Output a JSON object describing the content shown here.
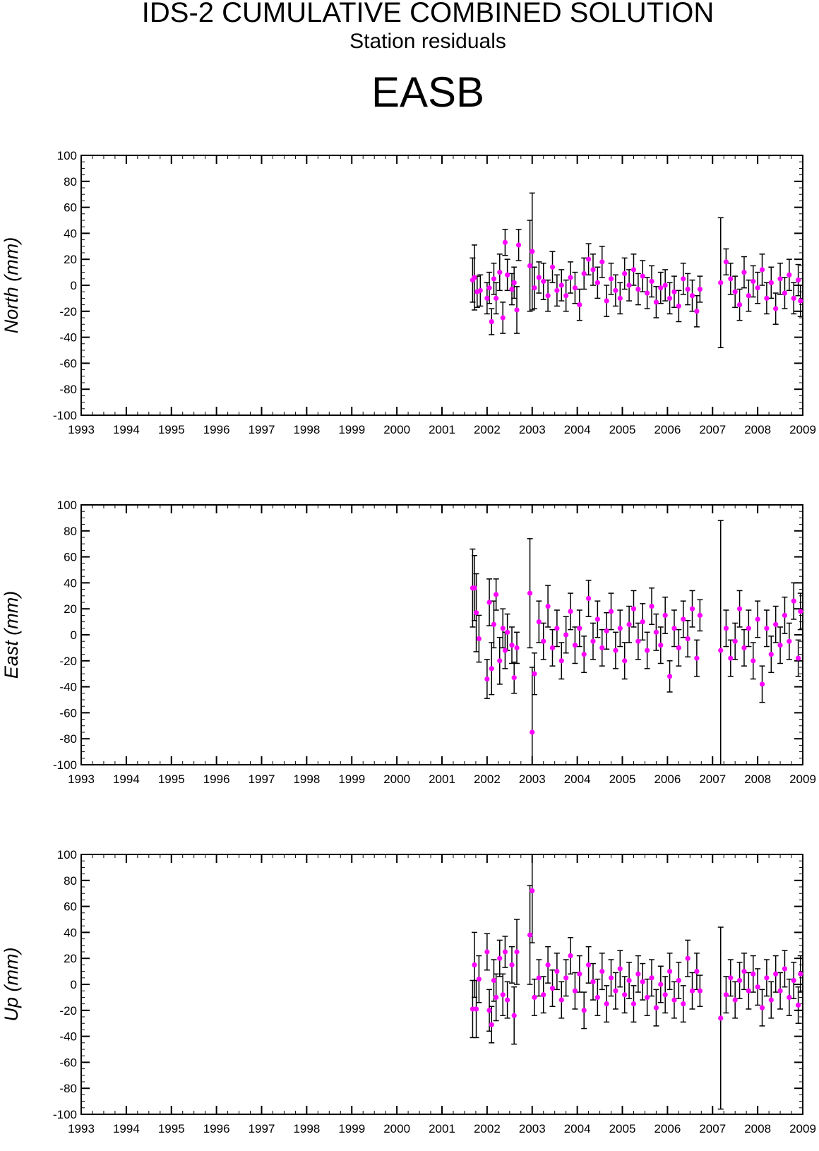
{
  "header": {
    "title": "IDS-2 CUMULATIVE COMBINED SOLUTION",
    "subtitle": "Station residuals",
    "station": "EASB"
  },
  "colors": {
    "marker": "#ff00ff",
    "errorbar": "#000000",
    "axes": "#000000"
  },
  "chart_data": [
    {
      "type": "scatter",
      "ylabel": "North (mm)",
      "xlim": [
        1993,
        2009
      ],
      "ylim": [
        -100,
        100
      ],
      "x_ticks": [
        "1993",
        "1994",
        "1995",
        "1996",
        "1997",
        "1998",
        "1999",
        "2000",
        "2001",
        "2002",
        "2003",
        "2004",
        "2005",
        "2006",
        "2007",
        "2008",
        "2009"
      ],
      "y_ticks": [
        "-100",
        "-80",
        "-60",
        "-40",
        "-20",
        "0",
        "20",
        "40",
        "60",
        "80",
        "100"
      ],
      "series": [
        {
          "x": [
            2001.68,
            2001.72,
            2001.78,
            2001.85,
            2002.0,
            2002.05,
            2002.1,
            2002.15,
            2002.2,
            2002.28,
            2002.35,
            2002.4,
            2002.45,
            2002.55,
            2002.6,
            2002.66,
            2002.7,
            2002.95,
            2003.0,
            2003.05,
            2003.15,
            2003.25,
            2003.35,
            2003.45,
            2003.55,
            2003.65,
            2003.75,
            2003.85,
            2003.95,
            2004.05,
            2004.15,
            2004.25,
            2004.35,
            2004.45,
            2004.55,
            2004.65,
            2004.75,
            2004.85,
            2004.95,
            2005.05,
            2005.15,
            2005.25,
            2005.35,
            2005.45,
            2005.55,
            2005.65,
            2005.75,
            2005.85,
            2005.95,
            2006.05,
            2006.15,
            2006.25,
            2006.35,
            2006.45,
            2006.55,
            2006.65,
            2006.72,
            2007.18,
            2007.3,
            2007.4,
            2007.5,
            2007.6,
            2007.7,
            2007.8,
            2007.9,
            2008.0,
            2008.1,
            2008.2,
            2008.3,
            2008.4,
            2008.5,
            2008.6,
            2008.7,
            2008.8,
            2008.9,
            2008.95
          ],
          "y": [
            4,
            6,
            -5,
            -4,
            -10,
            -2,
            -28,
            5,
            -10,
            10,
            -25,
            33,
            8,
            -3,
            2,
            -19,
            31,
            15,
            26,
            -2,
            6,
            3,
            -8,
            14,
            -4,
            0,
            -8,
            6,
            -2,
            -15,
            9,
            20,
            12,
            2,
            18,
            -12,
            5,
            -4,
            -10,
            9,
            0,
            12,
            -3,
            7,
            -6,
            3,
            -13,
            -2,
            0,
            -10,
            -5,
            -16,
            5,
            -3,
            -8,
            -20,
            -3,
            2,
            18,
            5,
            -5,
            -15,
            10,
            -8,
            3,
            -2,
            12,
            -10,
            2,
            -18,
            5,
            -6,
            8,
            -10,
            4,
            -12
          ],
          "err": [
            17,
            25,
            12,
            12,
            12,
            12,
            10,
            12,
            12,
            14,
            12,
            10,
            12,
            12,
            12,
            18,
            12,
            35,
            45,
            16,
            12,
            14,
            12,
            12,
            12,
            12,
            12,
            12,
            12,
            12,
            12,
            12,
            12,
            12,
            12,
            12,
            12,
            12,
            12,
            12,
            12,
            12,
            12,
            12,
            12,
            12,
            12,
            12,
            12,
            12,
            12,
            12,
            12,
            12,
            12,
            12,
            10,
            50,
            10,
            12,
            12,
            12,
            12,
            12,
            12,
            12,
            12,
            12,
            12,
            12,
            12,
            12,
            12,
            12,
            12,
            12
          ]
        }
      ]
    },
    {
      "type": "scatter",
      "ylabel": "East (mm)",
      "xlim": [
        1993,
        2009
      ],
      "ylim": [
        -100,
        100
      ],
      "x_ticks": [
        "1993",
        "1994",
        "1995",
        "1996",
        "1997",
        "1998",
        "1999",
        "2000",
        "2001",
        "2002",
        "2003",
        "2004",
        "2005",
        "2006",
        "2007",
        "2008",
        "2009"
      ],
      "y_ticks": [
        "-100",
        "-80",
        "-60",
        "-40",
        "-20",
        "0",
        "20",
        "40",
        "60",
        "80",
        "100"
      ],
      "series": [
        {
          "x": [
            2001.68,
            2001.72,
            2001.76,
            2001.82,
            2002.0,
            2002.05,
            2002.1,
            2002.15,
            2002.2,
            2002.28,
            2002.35,
            2002.4,
            2002.45,
            2002.55,
            2002.6,
            2002.66,
            2002.95,
            2003.0,
            2003.05,
            2003.15,
            2003.25,
            2003.35,
            2003.45,
            2003.55,
            2003.65,
            2003.75,
            2003.85,
            2003.95,
            2004.05,
            2004.15,
            2004.25,
            2004.35,
            2004.45,
            2004.55,
            2004.65,
            2004.75,
            2004.85,
            2004.95,
            2005.05,
            2005.15,
            2005.25,
            2005.35,
            2005.45,
            2005.55,
            2005.65,
            2005.75,
            2005.85,
            2005.95,
            2006.05,
            2006.15,
            2006.25,
            2006.35,
            2006.45,
            2006.55,
            2006.65,
            2006.72,
            2007.18,
            2007.3,
            2007.4,
            2007.5,
            2007.6,
            2007.7,
            2007.8,
            2007.9,
            2008.0,
            2008.1,
            2008.2,
            2008.3,
            2008.4,
            2008.5,
            2008.6,
            2008.7,
            2008.8,
            2008.9,
            2008.95
          ],
          "y": [
            36,
            36,
            17,
            -3,
            -34,
            25,
            -26,
            8,
            31,
            -20,
            5,
            -12,
            2,
            -8,
            -33,
            -10,
            32,
            -75,
            -30,
            10,
            -5,
            22,
            -10,
            5,
            -20,
            0,
            18,
            -8,
            5,
            -15,
            28,
            -5,
            12,
            -10,
            3,
            18,
            -12,
            5,
            -20,
            8,
            20,
            -5,
            10,
            -12,
            22,
            2,
            -8,
            15,
            -32,
            5,
            -10,
            12,
            -3,
            20,
            -18,
            15,
            -12,
            5,
            -18,
            -5,
            20,
            -10,
            5,
            -20,
            12,
            -38,
            5,
            -15,
            8,
            -8,
            15,
            -5,
            26,
            -18,
            18
          ],
          "err": [
            30,
            25,
            30,
            18,
            15,
            18,
            20,
            18,
            12,
            18,
            15,
            14,
            14,
            14,
            12,
            12,
            42,
            50,
            16,
            16,
            14,
            16,
            14,
            14,
            14,
            14,
            14,
            14,
            14,
            14,
            14,
            14,
            14,
            14,
            14,
            14,
            14,
            14,
            14,
            14,
            14,
            14,
            14,
            14,
            14,
            14,
            14,
            14,
            12,
            14,
            14,
            14,
            14,
            14,
            14,
            12,
            100,
            14,
            14,
            14,
            14,
            14,
            14,
            14,
            14,
            14,
            14,
            14,
            14,
            14,
            14,
            14,
            14,
            14,
            14
          ]
        }
      ]
    },
    {
      "type": "scatter",
      "ylabel": "Up (mm)",
      "xlim": [
        1993,
        2009
      ],
      "ylim": [
        -100,
        100
      ],
      "x_ticks": [
        "1993",
        "1994",
        "1995",
        "1996",
        "1997",
        "1998",
        "1999",
        "2000",
        "2001",
        "2002",
        "2003",
        "2004",
        "2005",
        "2006",
        "2007",
        "2008",
        "2009"
      ],
      "y_ticks": [
        "-100",
        "-80",
        "-60",
        "-40",
        "-20",
        "0",
        "20",
        "40",
        "60",
        "80",
        "100"
      ],
      "series": [
        {
          "x": [
            2001.68,
            2001.72,
            2001.76,
            2001.82,
            2002.0,
            2002.05,
            2002.1,
            2002.15,
            2002.2,
            2002.28,
            2002.35,
            2002.4,
            2002.45,
            2002.55,
            2002.6,
            2002.66,
            2002.95,
            2003.0,
            2003.05,
            2003.15,
            2003.25,
            2003.35,
            2003.45,
            2003.55,
            2003.65,
            2003.75,
            2003.85,
            2003.95,
            2004.05,
            2004.15,
            2004.25,
            2004.35,
            2004.45,
            2004.55,
            2004.65,
            2004.75,
            2004.85,
            2004.95,
            2005.05,
            2005.15,
            2005.25,
            2005.35,
            2005.45,
            2005.55,
            2005.65,
            2005.75,
            2005.85,
            2005.95,
            2006.05,
            2006.15,
            2006.25,
            2006.35,
            2006.45,
            2006.55,
            2006.65,
            2006.72,
            2007.18,
            2007.3,
            2007.4,
            2007.5,
            2007.6,
            2007.7,
            2007.8,
            2007.9,
            2008.0,
            2008.1,
            2008.2,
            2008.3,
            2008.4,
            2008.5,
            2008.6,
            2008.7,
            2008.8,
            2008.9,
            2008.95
          ],
          "y": [
            -19,
            15,
            -19,
            4,
            25,
            -20,
            -31,
            3,
            -10,
            20,
            -8,
            25,
            -12,
            15,
            -24,
            25,
            38,
            72,
            -10,
            5,
            -8,
            15,
            -3,
            10,
            -12,
            5,
            22,
            -5,
            8,
            -20,
            15,
            2,
            -10,
            10,
            -15,
            5,
            -5,
            12,
            -8,
            3,
            -15,
            8,
            2,
            -10,
            5,
            -18,
            0,
            -8,
            10,
            -12,
            3,
            -15,
            20,
            -5,
            10,
            -5,
            -26,
            -8,
            5,
            -12,
            3,
            10,
            -5,
            8,
            -2,
            -18,
            5,
            -12,
            8,
            -5,
            12,
            -10,
            3,
            -16,
            8
          ],
          "err": [
            22,
            25,
            22,
            18,
            14,
            16,
            14,
            16,
            18,
            14,
            16,
            12,
            14,
            14,
            22,
            25,
            38,
            40,
            14,
            14,
            14,
            14,
            14,
            14,
            14,
            14,
            14,
            14,
            14,
            14,
            14,
            14,
            14,
            14,
            14,
            14,
            14,
            14,
            14,
            14,
            14,
            14,
            14,
            14,
            14,
            14,
            14,
            14,
            14,
            14,
            14,
            14,
            14,
            14,
            14,
            12,
            70,
            14,
            14,
            14,
            14,
            14,
            14,
            14,
            14,
            14,
            14,
            14,
            14,
            14,
            14,
            14,
            14,
            14,
            14
          ]
        }
      ]
    }
  ]
}
